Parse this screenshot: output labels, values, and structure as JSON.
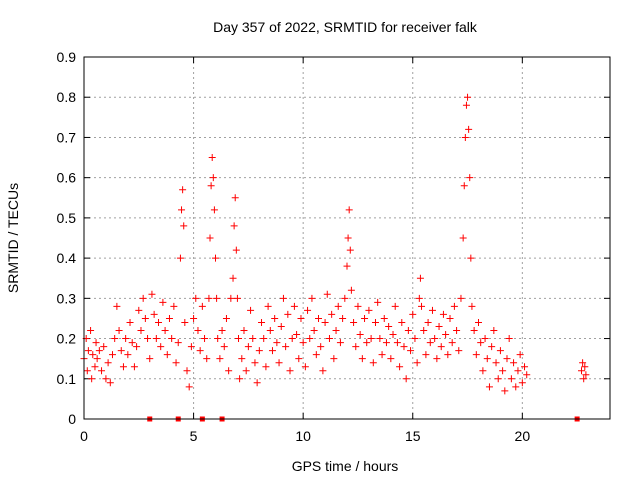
{
  "chart_data": {
    "type": "scatter",
    "title": "Day 357 of 2022, SRMTID for receiver falk",
    "xlabel": "GPS time / hours",
    "ylabel": "SRMTID / TECUs",
    "xlim": [
      0,
      24
    ],
    "ylim": [
      0,
      0.9
    ],
    "xticks": [
      0,
      5,
      10,
      15,
      20
    ],
    "xtick_labels": [
      "0",
      "5",
      "10",
      "15",
      "20"
    ],
    "yticks": [
      0,
      0.1,
      0.2,
      0.3,
      0.4,
      0.5,
      0.6,
      0.7,
      0.8,
      0.9
    ],
    "ytick_labels": [
      "0",
      "0.1",
      "0.2",
      "0.3",
      "0.4",
      "0.5",
      "0.6",
      "0.7",
      "0.8",
      "0.9"
    ],
    "grid": true,
    "marker": "+",
    "color": "#ff0000",
    "baseline_markers_x": [
      3.0,
      4.3,
      5.4,
      6.3,
      22.5
    ],
    "series": [
      {
        "name": "SRMTID",
        "points": [
          [
            0.0,
            0.15
          ],
          [
            0.1,
            0.2
          ],
          [
            0.15,
            0.12
          ],
          [
            0.2,
            0.17
          ],
          [
            0.3,
            0.22
          ],
          [
            0.35,
            0.1
          ],
          [
            0.4,
            0.16
          ],
          [
            0.5,
            0.13
          ],
          [
            0.55,
            0.19
          ],
          [
            0.6,
            0.15
          ],
          [
            0.7,
            0.17
          ],
          [
            0.8,
            0.12
          ],
          [
            0.9,
            0.18
          ],
          [
            1.0,
            0.1
          ],
          [
            1.1,
            0.14
          ],
          [
            1.2,
            0.09
          ],
          [
            1.3,
            0.16
          ],
          [
            1.4,
            0.2
          ],
          [
            1.5,
            0.28
          ],
          [
            1.6,
            0.22
          ],
          [
            1.7,
            0.17
          ],
          [
            1.8,
            0.13
          ],
          [
            1.9,
            0.2
          ],
          [
            2.0,
            0.16
          ],
          [
            2.1,
            0.24
          ],
          [
            2.2,
            0.19
          ],
          [
            2.3,
            0.13
          ],
          [
            2.4,
            0.18
          ],
          [
            2.5,
            0.27
          ],
          [
            2.6,
            0.22
          ],
          [
            2.7,
            0.3
          ],
          [
            2.8,
            0.25
          ],
          [
            2.9,
            0.2
          ],
          [
            3.0,
            0.15
          ],
          [
            3.1,
            0.31
          ],
          [
            3.2,
            0.26
          ],
          [
            3.3,
            0.2
          ],
          [
            3.4,
            0.24
          ],
          [
            3.5,
            0.18
          ],
          [
            3.6,
            0.29
          ],
          [
            3.7,
            0.22
          ],
          [
            3.8,
            0.16
          ],
          [
            3.9,
            0.25
          ],
          [
            4.0,
            0.2
          ],
          [
            4.1,
            0.28
          ],
          [
            4.2,
            0.14
          ],
          [
            4.3,
            0.19
          ],
          [
            4.4,
            0.4
          ],
          [
            4.45,
            0.52
          ],
          [
            4.5,
            0.57
          ],
          [
            4.55,
            0.48
          ],
          [
            4.6,
            0.24
          ],
          [
            4.7,
            0.12
          ],
          [
            4.8,
            0.08
          ],
          [
            4.9,
            0.18
          ],
          [
            5.0,
            0.25
          ],
          [
            5.1,
            0.3
          ],
          [
            5.2,
            0.22
          ],
          [
            5.3,
            0.17
          ],
          [
            5.4,
            0.28
          ],
          [
            5.5,
            0.2
          ],
          [
            5.6,
            0.15
          ],
          [
            5.7,
            0.3
          ],
          [
            5.75,
            0.45
          ],
          [
            5.8,
            0.58
          ],
          [
            5.85,
            0.65
          ],
          [
            5.9,
            0.6
          ],
          [
            5.95,
            0.52
          ],
          [
            6.0,
            0.4
          ],
          [
            6.05,
            0.3
          ],
          [
            6.1,
            0.2
          ],
          [
            6.2,
            0.15
          ],
          [
            6.3,
            0.22
          ],
          [
            6.4,
            0.18
          ],
          [
            6.5,
            0.25
          ],
          [
            6.6,
            0.12
          ],
          [
            6.7,
            0.3
          ],
          [
            6.8,
            0.35
          ],
          [
            6.85,
            0.48
          ],
          [
            6.9,
            0.55
          ],
          [
            6.95,
            0.42
          ],
          [
            7.0,
            0.3
          ],
          [
            7.05,
            0.2
          ],
          [
            7.1,
            0.1
          ],
          [
            7.2,
            0.15
          ],
          [
            7.3,
            0.22
          ],
          [
            7.4,
            0.12
          ],
          [
            7.5,
            0.18
          ],
          [
            7.6,
            0.27
          ],
          [
            7.7,
            0.2
          ],
          [
            7.8,
            0.14
          ],
          [
            7.9,
            0.09
          ],
          [
            8.0,
            0.17
          ],
          [
            8.1,
            0.24
          ],
          [
            8.2,
            0.2
          ],
          [
            8.3,
            0.13
          ],
          [
            8.4,
            0.28
          ],
          [
            8.5,
            0.22
          ],
          [
            8.6,
            0.17
          ],
          [
            8.7,
            0.25
          ],
          [
            8.8,
            0.19
          ],
          [
            8.9,
            0.14
          ],
          [
            9.0,
            0.23
          ],
          [
            9.1,
            0.3
          ],
          [
            9.2,
            0.18
          ],
          [
            9.3,
            0.26
          ],
          [
            9.4,
            0.12
          ],
          [
            9.5,
            0.2
          ],
          [
            9.6,
            0.28
          ],
          [
            9.7,
            0.21
          ],
          [
            9.8,
            0.15
          ],
          [
            9.9,
            0.25
          ],
          [
            10.0,
            0.19
          ],
          [
            10.1,
            0.13
          ],
          [
            10.2,
            0.27
          ],
          [
            10.3,
            0.2
          ],
          [
            10.4,
            0.3
          ],
          [
            10.5,
            0.22
          ],
          [
            10.6,
            0.16
          ],
          [
            10.7,
            0.25
          ],
          [
            10.8,
            0.18
          ],
          [
            10.9,
            0.12
          ],
          [
            11.0,
            0.24
          ],
          [
            11.1,
            0.31
          ],
          [
            11.2,
            0.2
          ],
          [
            11.3,
            0.26
          ],
          [
            11.4,
            0.15
          ],
          [
            11.5,
            0.22
          ],
          [
            11.6,
            0.28
          ],
          [
            11.7,
            0.19
          ],
          [
            11.8,
            0.25
          ],
          [
            11.9,
            0.3
          ],
          [
            12.0,
            0.38
          ],
          [
            12.05,
            0.45
          ],
          [
            12.1,
            0.52
          ],
          [
            12.15,
            0.42
          ],
          [
            12.2,
            0.32
          ],
          [
            12.3,
            0.24
          ],
          [
            12.4,
            0.18
          ],
          [
            12.5,
            0.28
          ],
          [
            12.6,
            0.21
          ],
          [
            12.7,
            0.15
          ],
          [
            12.8,
            0.25
          ],
          [
            12.9,
            0.19
          ],
          [
            13.0,
            0.27
          ],
          [
            13.1,
            0.2
          ],
          [
            13.2,
            0.14
          ],
          [
            13.3,
            0.24
          ],
          [
            13.4,
            0.29
          ],
          [
            13.5,
            0.2
          ],
          [
            13.6,
            0.16
          ],
          [
            13.7,
            0.25
          ],
          [
            13.8,
            0.19
          ],
          [
            13.9,
            0.23
          ],
          [
            14.0,
            0.15
          ],
          [
            14.1,
            0.21
          ],
          [
            14.2,
            0.28
          ],
          [
            14.3,
            0.19
          ],
          [
            14.4,
            0.13
          ],
          [
            14.5,
            0.24
          ],
          [
            14.6,
            0.18
          ],
          [
            14.7,
            0.1
          ],
          [
            14.8,
            0.22
          ],
          [
            14.9,
            0.17
          ],
          [
            15.0,
            0.26
          ],
          [
            15.1,
            0.2
          ],
          [
            15.2,
            0.14
          ],
          [
            15.3,
            0.3
          ],
          [
            15.35,
            0.35
          ],
          [
            15.4,
            0.28
          ],
          [
            15.5,
            0.22
          ],
          [
            15.6,
            0.16
          ],
          [
            15.7,
            0.24
          ],
          [
            15.8,
            0.19
          ],
          [
            15.9,
            0.27
          ],
          [
            16.0,
            0.2
          ],
          [
            16.1,
            0.15
          ],
          [
            16.2,
            0.23
          ],
          [
            16.3,
            0.18
          ],
          [
            16.4,
            0.26
          ],
          [
            16.5,
            0.21
          ],
          [
            16.6,
            0.16
          ],
          [
            16.7,
            0.25
          ],
          [
            16.8,
            0.19
          ],
          [
            16.9,
            0.28
          ],
          [
            17.0,
            0.22
          ],
          [
            17.1,
            0.17
          ],
          [
            17.2,
            0.3
          ],
          [
            17.3,
            0.45
          ],
          [
            17.35,
            0.58
          ],
          [
            17.4,
            0.7
          ],
          [
            17.45,
            0.78
          ],
          [
            17.5,
            0.8
          ],
          [
            17.55,
            0.72
          ],
          [
            17.6,
            0.6
          ],
          [
            17.65,
            0.4
          ],
          [
            17.7,
            0.28
          ],
          [
            17.8,
            0.22
          ],
          [
            17.9,
            0.16
          ],
          [
            18.0,
            0.24
          ],
          [
            18.1,
            0.19
          ],
          [
            18.2,
            0.12
          ],
          [
            18.3,
            0.2
          ],
          [
            18.4,
            0.15
          ],
          [
            18.5,
            0.08
          ],
          [
            18.6,
            0.18
          ],
          [
            18.7,
            0.22
          ],
          [
            18.8,
            0.14
          ],
          [
            18.9,
            0.1
          ],
          [
            19.0,
            0.17
          ],
          [
            19.1,
            0.12
          ],
          [
            19.2,
            0.07
          ],
          [
            19.3,
            0.15
          ],
          [
            19.4,
            0.2
          ],
          [
            19.5,
            0.1
          ],
          [
            19.6,
            0.14
          ],
          [
            19.7,
            0.08
          ],
          [
            19.8,
            0.12
          ],
          [
            19.9,
            0.16
          ],
          [
            20.0,
            0.09
          ],
          [
            20.1,
            0.13
          ],
          [
            20.2,
            0.11
          ],
          [
            22.7,
            0.12
          ],
          [
            22.75,
            0.14
          ],
          [
            22.8,
            0.1
          ],
          [
            22.85,
            0.13
          ],
          [
            22.9,
            0.11
          ]
        ]
      }
    ]
  }
}
